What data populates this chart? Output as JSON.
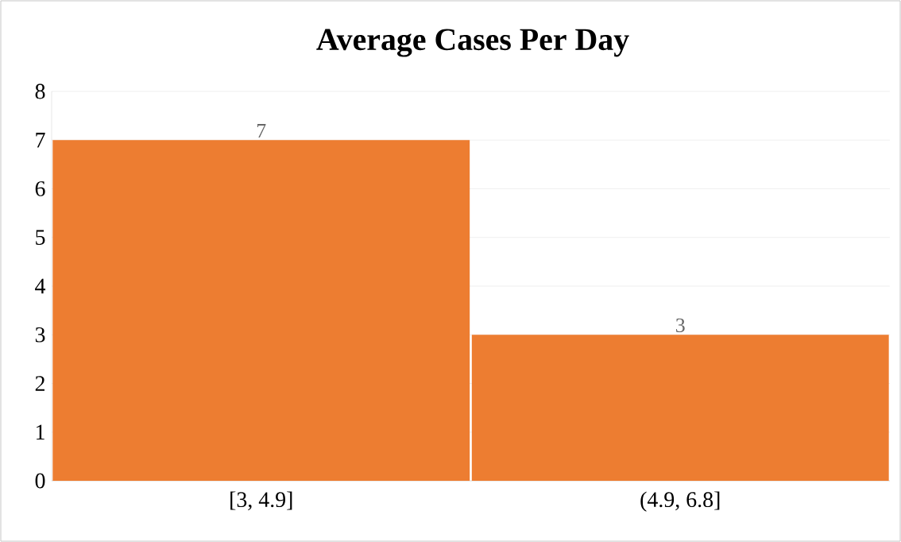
{
  "chart_data": {
    "type": "bar",
    "title": "Average Cases Per Day",
    "categories": [
      "[3, 4.9]",
      "(4.9, 6.8]"
    ],
    "values": [
      7,
      3
    ],
    "color": "#ed7d31",
    "ylim": [
      0,
      8
    ],
    "yticks": [
      0,
      1,
      2,
      3,
      4,
      5,
      6,
      7,
      8
    ],
    "grid": "y",
    "data_labels": true
  }
}
